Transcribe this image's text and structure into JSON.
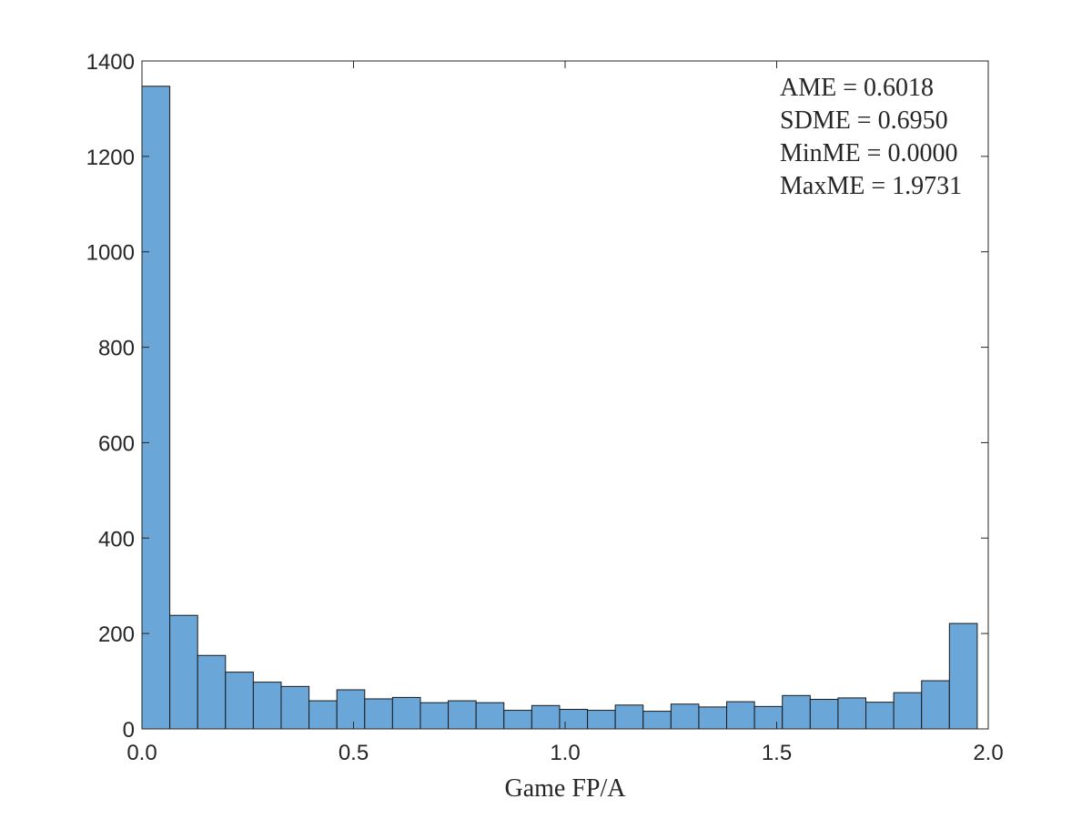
{
  "chart_data": {
    "type": "bar",
    "title": "",
    "xlabel": "Game FP/A",
    "ylabel": "",
    "xlim": [
      0,
      2
    ],
    "ylim": [
      0,
      1400
    ],
    "x_ticks": [
      "0.0",
      "0.5",
      "1.0",
      "1.5",
      "2.0"
    ],
    "y_ticks": [
      "0",
      "200",
      "400",
      "600",
      "800",
      "1000",
      "1200",
      "1400"
    ],
    "bin_width": 0.0658,
    "bin_edges_start": 0.0,
    "values": [
      1347,
      238,
      154,
      119,
      98,
      89,
      59,
      82,
      63,
      66,
      55,
      59,
      55,
      39,
      49,
      41,
      39,
      50,
      37,
      52,
      46,
      57,
      47,
      70,
      62,
      65,
      56,
      76,
      101,
      221
    ],
    "bar_color": "#6aa6d7",
    "bar_edge_color": "#1a1a1a",
    "grid": false,
    "annotations": [
      "AME = 0.6018",
      "SDME = 0.6950",
      "MinME = 0.0000",
      "MaxME = 1.9731"
    ]
  }
}
